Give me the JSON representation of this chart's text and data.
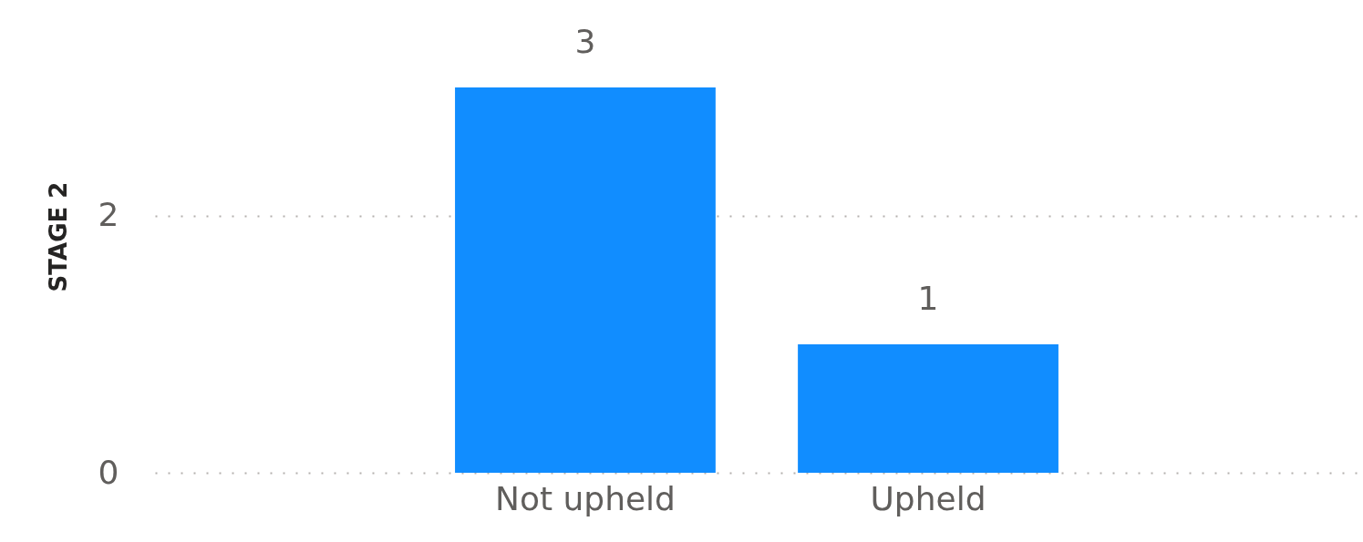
{
  "chart_data": {
    "type": "bar",
    "ylabel": "STAGE 2",
    "categories": [
      "Not upheld",
      "Upheld"
    ],
    "series": [
      {
        "color": "#118dff",
        "values": [
          3,
          1
        ]
      }
    ],
    "ylim": [
      0,
      3.68
    ],
    "yticks": [
      0,
      2
    ],
    "grid": "y",
    "data_labels": true
  }
}
